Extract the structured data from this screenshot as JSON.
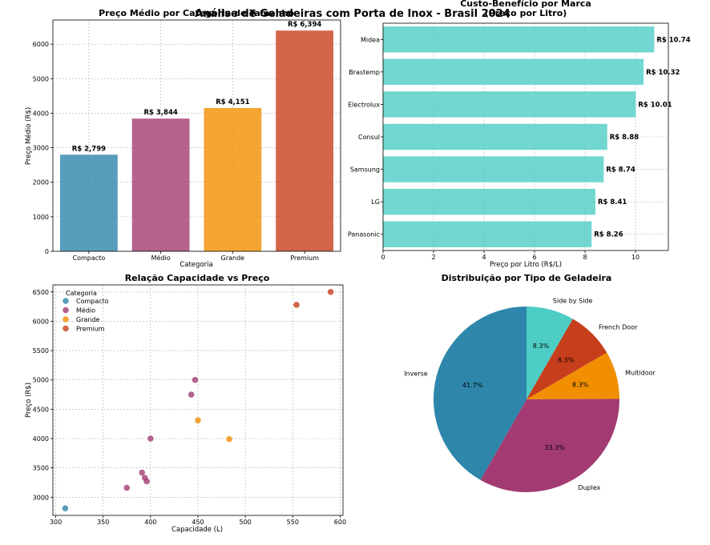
{
  "suptitle": "Análise de Geladeiras com Porta de Inox - Brasil 2024",
  "chart_data": [
    {
      "type": "bar",
      "title": "Preço Médio por Categoria de Tamanho",
      "xlabel": "Categoria",
      "ylabel": "Preço Médio (R$)",
      "categories": [
        "Compacto",
        "Médio",
        "Grande",
        "Premium"
      ],
      "values": [
        2799,
        3844,
        4151,
        6394
      ],
      "value_labels": [
        "R$ 2,799",
        "R$ 3,844",
        "R$ 4,151",
        "R$ 6,394"
      ],
      "colors": [
        "#2e86ab",
        "#a23b72",
        "#f18f01",
        "#c73e1d"
      ],
      "ylim": [
        0,
        6700
      ],
      "yticks": [
        0,
        1000,
        2000,
        3000,
        4000,
        5000,
        6000
      ],
      "grid": true
    },
    {
      "type": "bar",
      "orientation": "horizontal",
      "title": "Custo-Benefício por Marca",
      "subtitle": "(Preço por Litro)",
      "xlabel": "Preço por Litro (R$/L)",
      "ylabel": "",
      "categories": [
        "Midea",
        "Brastemp",
        "Electrolux",
        "Consul",
        "Samsung",
        "LG",
        "Panasonic"
      ],
      "values": [
        10.74,
        10.32,
        10.01,
        8.88,
        8.74,
        8.41,
        8.26
      ],
      "value_labels": [
        "R$ 10.74",
        "R$ 10.32",
        "R$ 10.01",
        "R$ 8.88",
        "R$ 8.74",
        "R$ 8.41",
        "R$ 8.26"
      ],
      "color": "#4ecdc4",
      "xlim": [
        0,
        11.3
      ],
      "xticks": [
        0,
        2,
        4,
        6,
        8,
        10
      ],
      "grid": true
    },
    {
      "type": "scatter",
      "title": "Relação Capacidade vs Preço",
      "xlabel": "Capacidade (L)",
      "ylabel": "Preço (R$)",
      "xlim": [
        297,
        603
      ],
      "ylim": [
        2690,
        6620
      ],
      "xticks": [
        300,
        350,
        400,
        450,
        500,
        550,
        600
      ],
      "yticks": [
        3000,
        3500,
        4000,
        4500,
        5000,
        5500,
        6000,
        6500
      ],
      "legend_title": "Categoria",
      "legend_position": "top-left",
      "grid": true,
      "series": [
        {
          "name": "Compacto",
          "color": "#2e86ab",
          "points": [
            [
              310,
              2810
            ]
          ]
        },
        {
          "name": "Médio",
          "color": "#a23b72",
          "points": [
            [
              375,
              3160
            ],
            [
              391,
              3420
            ],
            [
              394,
              3330
            ],
            [
              396,
              3270
            ],
            [
              400,
              4000
            ],
            [
              443,
              4750
            ],
            [
              447,
              5000
            ]
          ]
        },
        {
          "name": "Grande",
          "color": "#f18f01",
          "points": [
            [
              450,
              4310
            ],
            [
              483,
              3990
            ]
          ]
        },
        {
          "name": "Premium",
          "color": "#c73e1d",
          "points": [
            [
              554,
              6280
            ],
            [
              590,
              6500
            ]
          ]
        }
      ]
    },
    {
      "type": "pie",
      "title": "Distribuição por Tipo de Geladeira",
      "labels": [
        "Side by Side",
        "French Door",
        "Multidoor",
        "Duplex",
        "Inverse"
      ],
      "values": [
        8.3,
        8.3,
        8.3,
        33.3,
        41.7
      ],
      "value_labels": [
        "8.3%",
        "8.3%",
        "8.3%",
        "33.3%",
        "41.7%"
      ],
      "colors": [
        "#4ecdc4",
        "#c73e1d",
        "#f18f01",
        "#a23b72",
        "#2e86ab"
      ]
    }
  ]
}
